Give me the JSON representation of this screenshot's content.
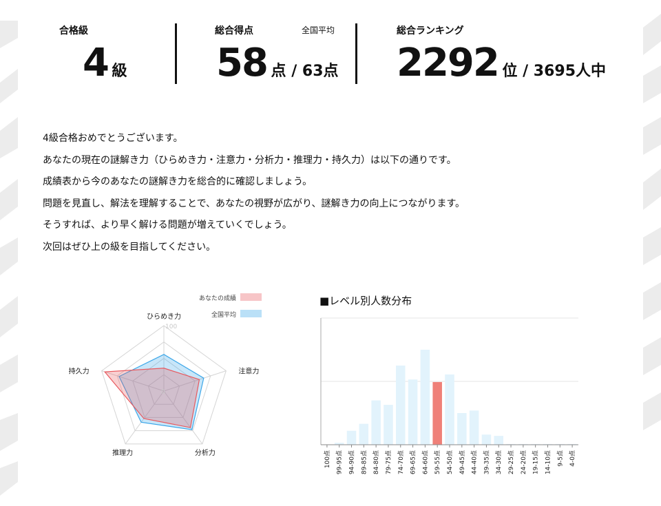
{
  "summary": {
    "grade": {
      "label": "合格級",
      "value": "4",
      "unit": "級"
    },
    "score": {
      "label": "総合得点",
      "avg_label": "全国平均",
      "value": "58",
      "unit": "点",
      "suffix": " / 63点"
    },
    "ranking": {
      "label": "総合ランキング",
      "value": "2292",
      "unit": "位",
      "suffix": " / 3695人中"
    }
  },
  "message": [
    "4級合格おめでとうございます。",
    "あなたの現在の謎解き力（ひらめき力・注意力・分析力・推理力・持久力）は以下の通りです。",
    "成績表から今のあなたの謎解き力を総合的に確認しましょう。",
    "問題を見直し、解法を理解することで、あなたの視野が広がり、謎解き力の向上につながります。",
    "そうすれば、より早く解ける問題が増えていくでしょう。",
    "次回はぜひ上の級を目指してください。"
  ],
  "chart_data": [
    {
      "type": "radar",
      "axes": [
        "ひらめき力",
        "注意力",
        "分析力",
        "推理力",
        "持久力"
      ],
      "scale_labels": [
        "100",
        "0"
      ],
      "range": [
        0,
        100
      ],
      "series": [
        {
          "name": "あなたの成績",
          "values": [
            35,
            57,
            69,
            52,
            95
          ],
          "color": "#e8595e"
        },
        {
          "name": "全国平均",
          "values": [
            56,
            64,
            73,
            59,
            72
          ],
          "color": "#3aa6e8"
        }
      ],
      "legend_position": "top-right"
    },
    {
      "type": "bar",
      "title": "■レベル別人数分布",
      "categories": [
        "100点",
        "99-95点",
        "94-90点",
        "89-85点",
        "84-80点",
        "79-75点",
        "74-70点",
        "69-65点",
        "64-60点",
        "59-55点",
        "54-50点",
        "49-45点",
        "44-40点",
        "39-35点",
        "34-30点",
        "29-25点",
        "24-20点",
        "19-15点",
        "14-10点",
        "9-5点",
        "4-0点"
      ],
      "values": [
        0,
        3,
        22,
        33,
        70,
        63,
        125,
        103,
        150,
        99,
        111,
        50,
        54,
        16,
        14,
        1,
        1,
        1,
        1,
        1,
        1
      ],
      "highlight_index": 9,
      "ylim": [
        0,
        200
      ],
      "colors": {
        "bar": "#e2f3fc",
        "highlight": "#ef8078",
        "grid": "#e6e6e6"
      }
    }
  ]
}
